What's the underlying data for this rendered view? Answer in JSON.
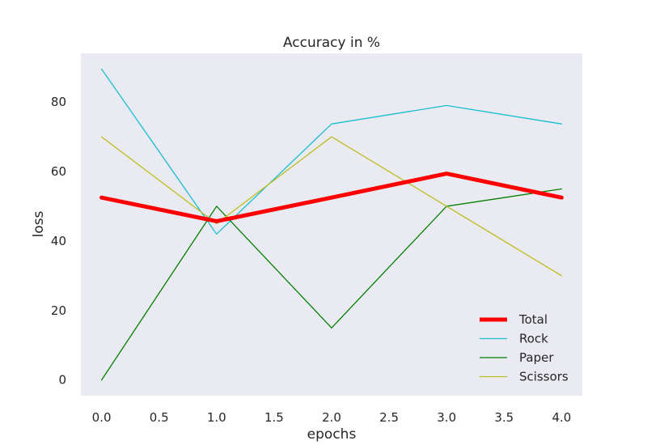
{
  "chart_data": {
    "type": "line",
    "title": "Accuracy in %",
    "xlabel": "epochs",
    "ylabel": "loss",
    "x": [
      0,
      1,
      2,
      3,
      4
    ],
    "xlim": [
      -0.18,
      4.18
    ],
    "ylim": [
      -4.5,
      94
    ],
    "xticks": [
      "0.0",
      "0.5",
      "1.0",
      "1.5",
      "2.0",
      "2.5",
      "3.0",
      "3.5",
      "4.0"
    ],
    "yticks": [
      "0",
      "20",
      "40",
      "60",
      "80"
    ],
    "grid": false,
    "legend_position": "lower-right",
    "plot_background": "#eaeaf2",
    "series": [
      {
        "name": "Total",
        "values": [
          52.5,
          45.7,
          52.5,
          59.4,
          52.5
        ],
        "color": "#ff0000",
        "width": "thick"
      },
      {
        "name": "Rock",
        "values": [
          89.5,
          42.0,
          73.7,
          79.0,
          73.7
        ],
        "color": "#17becf",
        "width": "thin"
      },
      {
        "name": "Paper",
        "values": [
          0.0,
          50.0,
          15.0,
          50.0,
          55.0
        ],
        "color": "#008000",
        "width": "thin"
      },
      {
        "name": "Scissors",
        "values": [
          70.0,
          45.0,
          70.0,
          50.0,
          30.0
        ],
        "color": "#bcbd22",
        "width": "thin"
      }
    ]
  }
}
